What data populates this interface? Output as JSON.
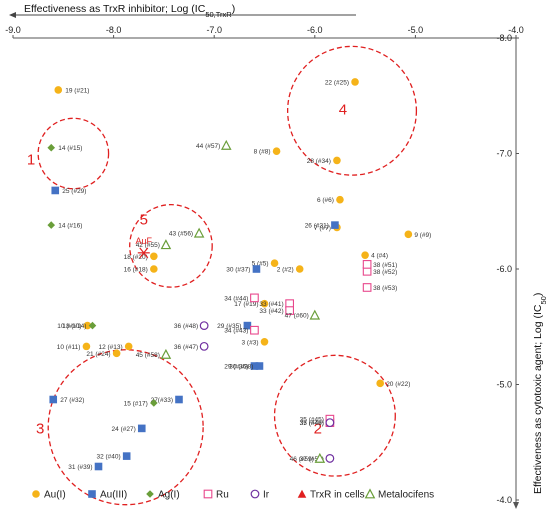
{
  "chart_data": {
    "type": "scatter",
    "xlabel": "Effectiveness as TrxR inhibitor; Log (IC",
    "xlabel_sub": "50,TrxR",
    "xlabel_end": ")",
    "ylabel": "Effectiveness as cytotoxic agent; Log (IC",
    "ylabel_sub": "50",
    "ylabel_end": ")",
    "xlim": [
      -9.0,
      -4.0
    ],
    "ylim": [
      -8.0,
      -4.0
    ],
    "x_reversed": true,
    "y_reversed": true,
    "x_ticks": [
      "-9.0",
      "-8.0",
      "-7.0",
      "-6.0",
      "-5.0",
      "-4.0"
    ],
    "y_ticks": [
      "-4.0",
      "-5.0",
      "-6.0",
      "-7.0",
      "-8.0"
    ],
    "x_tick_values": [
      -9,
      -8,
      -7,
      -6,
      -5,
      -4
    ],
    "y_tick_values": [
      -4,
      -5,
      -6,
      -7,
      -8
    ],
    "grid": false,
    "legend_position": "bottom",
    "colors": {
      "au1": "#f5b319",
      "au3": "#4472c4",
      "ag": "#6a9e3a",
      "ru": "#e8478c",
      "ir": "#7030a0",
      "cells": "#e02020",
      "metalocifens": "#6a9e3a",
      "ellipse": "#e02020"
    },
    "series": [
      {
        "name": "Au(I)",
        "marker": "circle",
        "color": "#f5b319",
        "points": [
          {
            "x": -6.15,
            "y": -6.0,
            "label": "2 (#2)"
          },
          {
            "x": -6.5,
            "y": -5.37,
            "label": "3 (#3)"
          },
          {
            "x": -5.5,
            "y": -6.12,
            "label": "4 (#4)"
          },
          {
            "x": -6.4,
            "y": -6.05,
            "label": "5 (#5)"
          },
          {
            "x": -5.75,
            "y": -6.6,
            "label": "6 (#6)"
          },
          {
            "x": -5.78,
            "y": -6.36,
            "label": "7 (#7)"
          },
          {
            "x": -6.38,
            "y": -7.02,
            "label": "8 (#8)"
          },
          {
            "x": -5.07,
            "y": -6.3,
            "label": "9 (#9)"
          },
          {
            "x": -8.26,
            "y": -5.51,
            "label": "10 (#10)"
          },
          {
            "x": -8.27,
            "y": -5.33,
            "label": "10 (#11)"
          },
          {
            "x": -7.85,
            "y": -5.33,
            "label": "12 (#13)"
          },
          {
            "x": -7.6,
            "y": -6.0,
            "label": "16 (#18)"
          },
          {
            "x": -6.5,
            "y": -5.7,
            "label": "17 (#19)"
          },
          {
            "x": -7.6,
            "y": -6.11,
            "label": "18 (#20)"
          },
          {
            "x": -8.55,
            "y": -7.55,
            "label": "19 (#21)"
          },
          {
            "x": -5.35,
            "y": -5.01,
            "label": "20 (#22)"
          },
          {
            "x": -7.97,
            "y": -5.27,
            "label": "21 (#24)"
          },
          {
            "x": -5.6,
            "y": -7.62,
            "label": "22 (#25)"
          },
          {
            "x": -5.78,
            "y": -6.94,
            "label": "28 (#34)"
          }
        ]
      },
      {
        "name": "Au(III)",
        "marker": "square",
        "color": "#4472c4",
        "points": [
          {
            "x": -8.58,
            "y": -6.68,
            "label": "25 (#29)"
          },
          {
            "x": -8.15,
            "y": -4.29,
            "label": "31 (#39)"
          },
          {
            "x": -7.87,
            "y": -4.38,
            "label": "32 (#40)"
          },
          {
            "x": -7.72,
            "y": -4.62,
            "label": "24 (#27)"
          },
          {
            "x": -8.6,
            "y": -4.87,
            "label": "27 (#32)"
          },
          {
            "x": -7.35,
            "y": -4.87,
            "label": "27(#33)"
          },
          {
            "x": -6.6,
            "y": -5.16,
            "label": "29 (#36)"
          },
          {
            "x": -6.55,
            "y": -5.16,
            "label": "30 (#38)"
          },
          {
            "x": -6.67,
            "y": -5.51,
            "label": "29 (#35)"
          },
          {
            "x": -6.58,
            "y": -6.0,
            "label": "30 (#37)"
          },
          {
            "x": -5.8,
            "y": -6.38,
            "label": "26 (#31)"
          }
        ]
      },
      {
        "name": "Ag(I)",
        "marker": "diamond",
        "color": "#6a9e3a",
        "points": [
          {
            "x": -8.62,
            "y": -6.38,
            "label": "14 (#16)"
          },
          {
            "x": -8.62,
            "y": -7.05,
            "label": "14 (#15)"
          },
          {
            "x": -8.21,
            "y": -5.51,
            "label": "13 (#14)"
          },
          {
            "x": -7.6,
            "y": -4.84,
            "label": "15 (#17)"
          }
        ]
      },
      {
        "name": "Ru",
        "marker": "square-open",
        "color": "#e8478c",
        "points": [
          {
            "x": -6.6,
            "y": -5.47,
            "label": "34 (#43)"
          },
          {
            "x": -6.6,
            "y": -5.75,
            "label": "34 (#44)"
          },
          {
            "x": -6.25,
            "y": -5.7,
            "label": "33 (#41)"
          },
          {
            "x": -6.25,
            "y": -5.64,
            "label": "33 (#42)"
          },
          {
            "x": -5.85,
            "y": -4.67,
            "label": "35 (#46)"
          },
          {
            "x": -5.85,
            "y": -4.7,
            "label": "35 (#45)"
          },
          {
            "x": -5.48,
            "y": -5.84,
            "label": "38 (#53)"
          },
          {
            "x": -5.48,
            "y": -5.98,
            "label": "38 (#52)"
          },
          {
            "x": -5.48,
            "y": -6.04,
            "label": "38 (#51)"
          }
        ]
      },
      {
        "name": "Ir",
        "marker": "circle-open",
        "color": "#7030a0",
        "points": [
          {
            "x": -7.1,
            "y": -5.33,
            "label": "36 (#47)"
          },
          {
            "x": -7.1,
            "y": -5.51,
            "label": "36 (#48)"
          },
          {
            "x": -5.85,
            "y": -4.36,
            "label": "37 (#50)"
          },
          {
            "x": -5.85,
            "y": -4.67,
            "label": "37 (#49)"
          }
        ]
      },
      {
        "name": "TrxR in cells",
        "marker": "triangle",
        "color": "#e02020",
        "points": []
      },
      {
        "name": "Metalocifens",
        "marker": "triangle-open",
        "color": "#6a9e3a",
        "points": [
          {
            "x": -7.48,
            "y": -5.26,
            "label": "45 (#58)"
          },
          {
            "x": -5.95,
            "y": -4.36,
            "label": "46 (#59)"
          },
          {
            "x": -6.0,
            "y": -5.6,
            "label": "47 (#60)"
          },
          {
            "x": -7.48,
            "y": -6.21,
            "label": "42 (#55)"
          },
          {
            "x": -7.15,
            "y": -6.31,
            "label": "43 (#56)"
          },
          {
            "x": -6.88,
            "y": -7.07,
            "label": "44 (#57)"
          }
        ]
      }
    ],
    "annotations": [
      {
        "text": "AuF",
        "x": -7.7,
        "y": -6.14,
        "marker": "asterisk",
        "color": "#e02020"
      }
    ],
    "groups": [
      {
        "label": "1",
        "cx": -8.4,
        "cy": -7.0,
        "rx": 0.35,
        "ry": 0.78,
        "label_x": -8.82,
        "label_y": -6.95
      },
      {
        "label": "2",
        "cx": -5.8,
        "cy": -4.73,
        "rx": 0.6,
        "ry": 0.43,
        "label_x": -5.97,
        "label_y": -4.62
      },
      {
        "label": "3",
        "cx": -7.88,
        "cy": -4.63,
        "rx": 0.77,
        "ry": 0.44,
        "label_x": -8.73,
        "label_y": -4.62
      },
      {
        "label": "4",
        "cx": -5.63,
        "cy": -7.37,
        "rx": 0.64,
        "ry": 0.48,
        "label_x": -5.72,
        "label_y": -7.38
      },
      {
        "label": "5",
        "cx": -7.43,
        "cy": -6.2,
        "rx": 0.41,
        "ry": 0.43,
        "label_x": -7.7,
        "label_y": -6.43
      }
    ]
  },
  "legend": {
    "items": [
      {
        "label": "Au(I)",
        "marker": "circle",
        "color": "#f5b319"
      },
      {
        "label": "Au(III)",
        "marker": "square",
        "color": "#4472c4"
      },
      {
        "label": "Ag(I)",
        "marker": "diamond",
        "color": "#6a9e3a"
      },
      {
        "label": "Ru",
        "marker": "square-open",
        "color": "#e8478c"
      },
      {
        "label": "Ir",
        "marker": "circle-open",
        "color": "#7030a0"
      },
      {
        "label": "TrxR in cells",
        "marker": "triangle",
        "color": "#e02020"
      },
      {
        "label": "Metalocifens",
        "marker": "triangle-open",
        "color": "#6a9e3a"
      }
    ]
  }
}
